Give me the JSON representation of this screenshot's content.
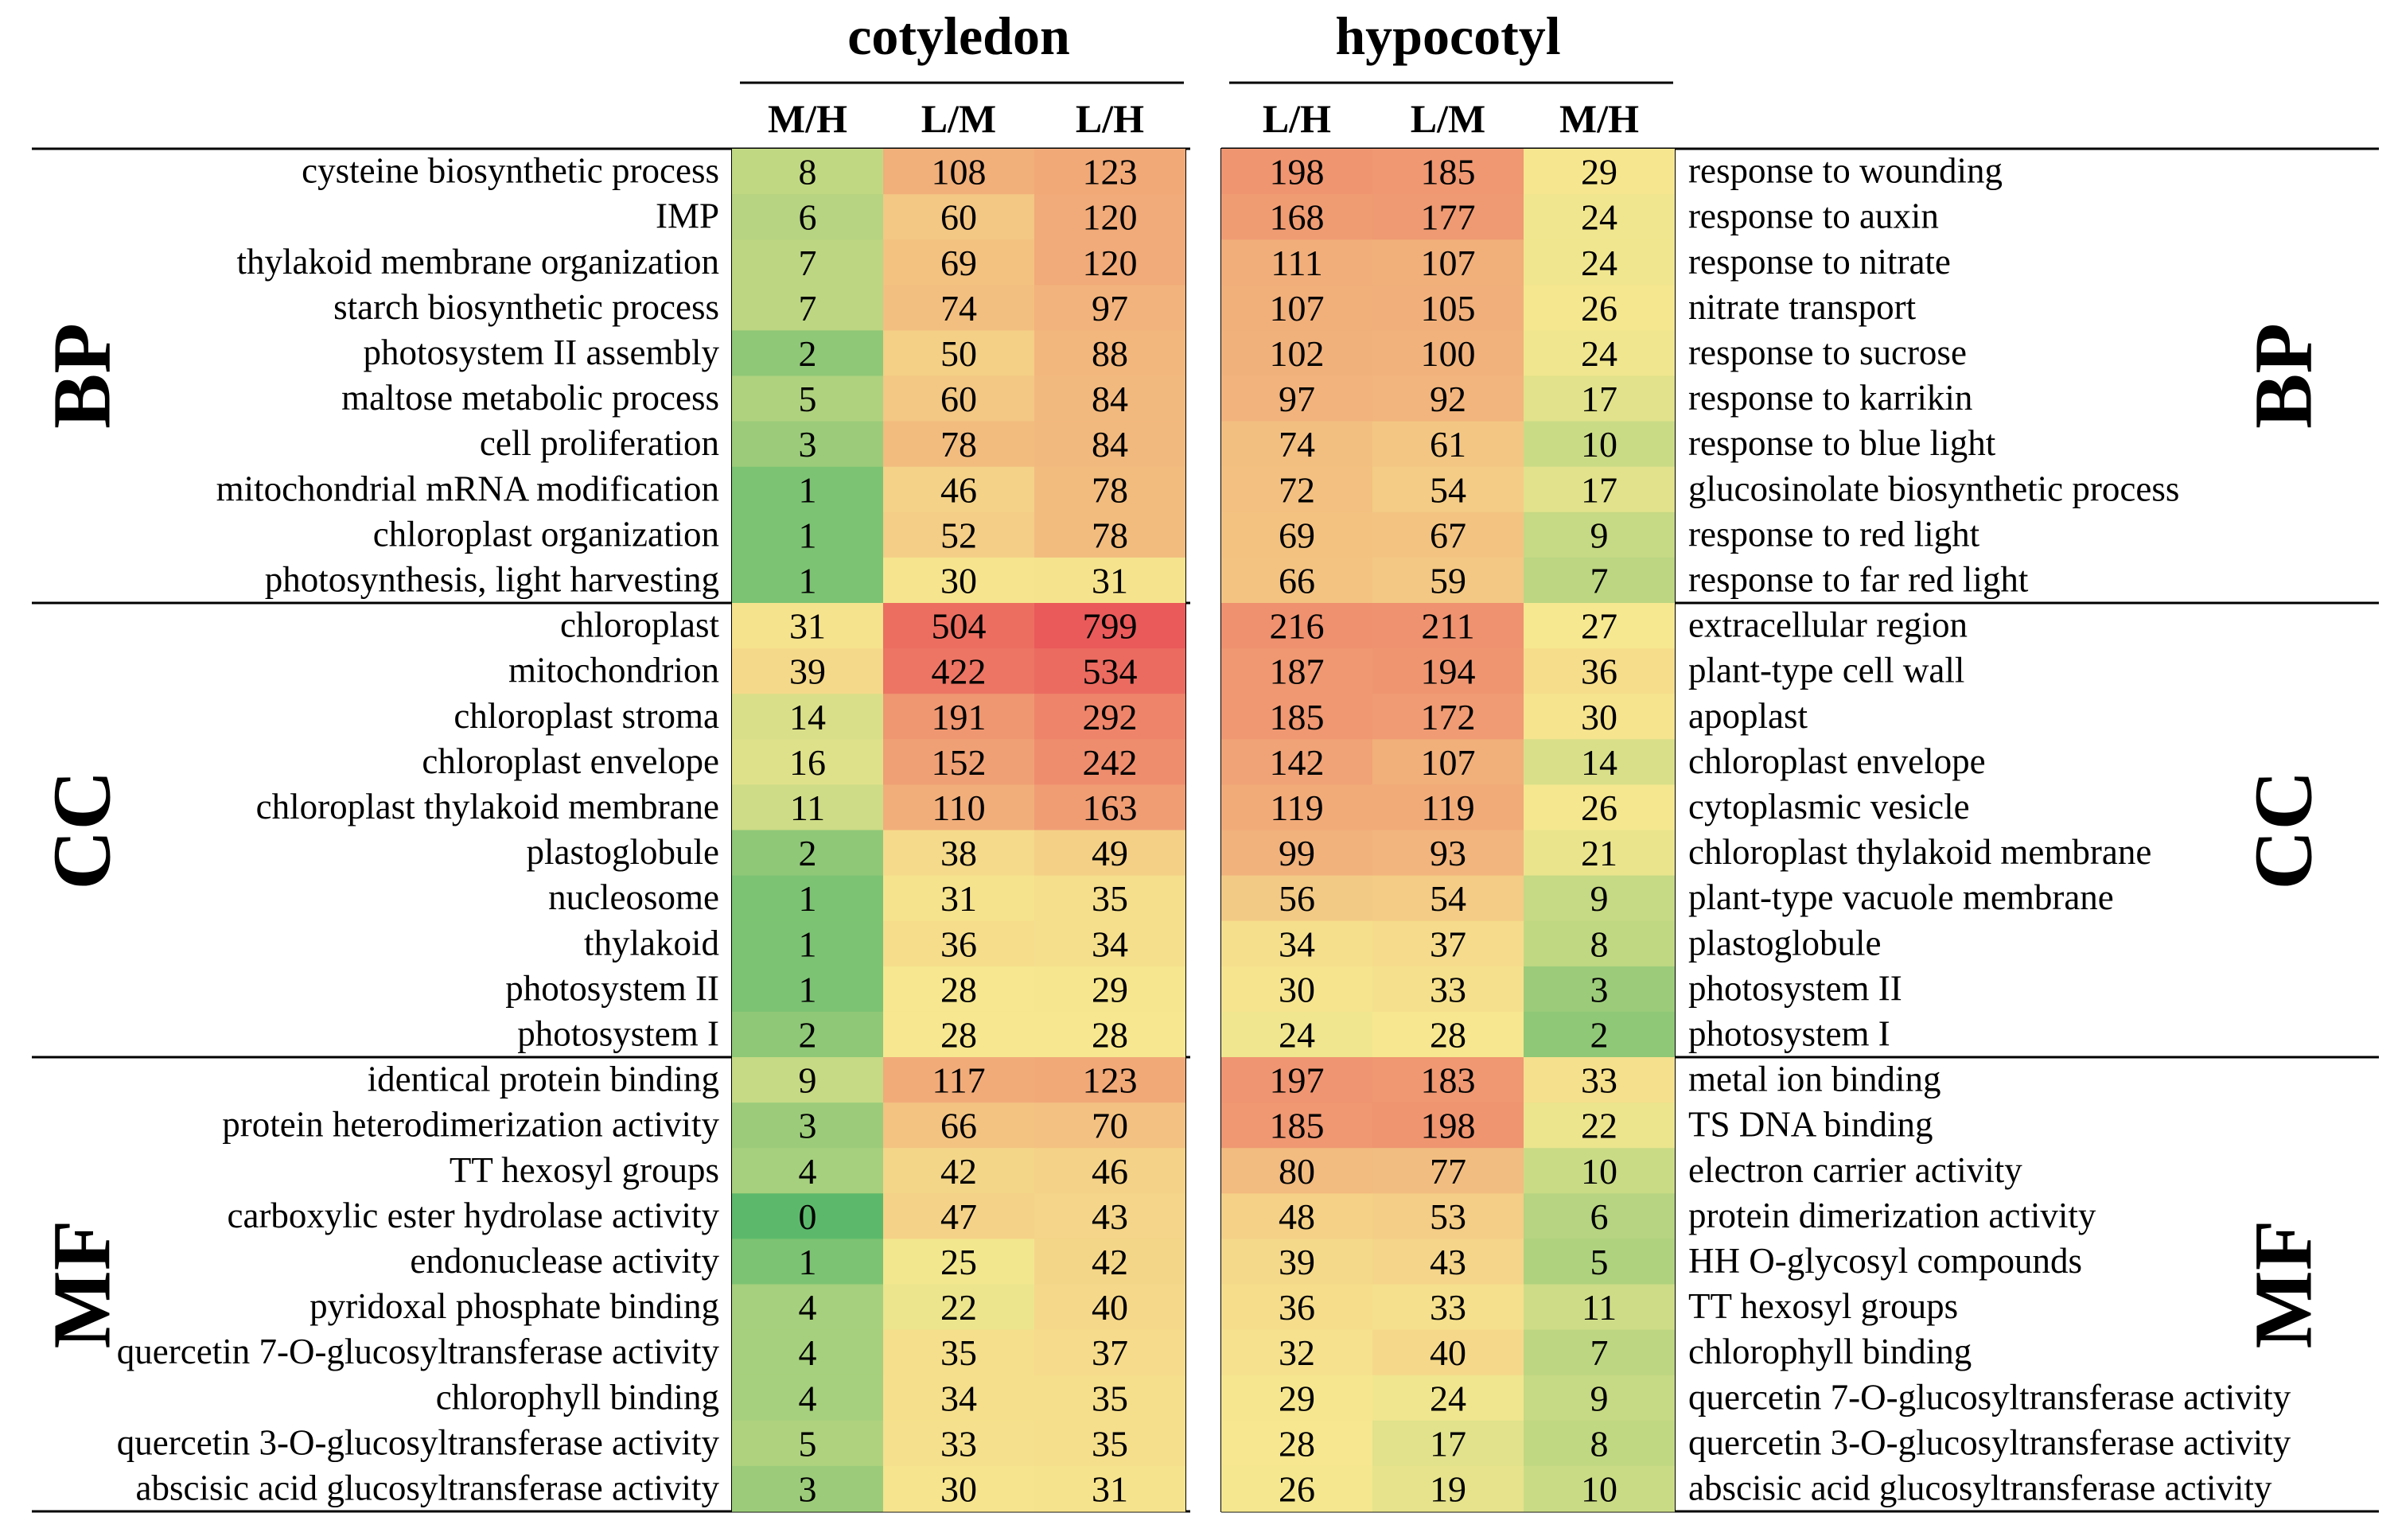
{
  "chart_data": {
    "type": "heatmap",
    "color_scale": {
      "low": "#5cb96b",
      "mid": "#f6e890",
      "high": "#ea5a5a",
      "max_value": 800
    },
    "panels": [
      {
        "title": "cotyledon",
        "columns": [
          "M/H",
          "L/M",
          "L/H"
        ]
      },
      {
        "title": "hypocotyl",
        "columns": [
          "L/H",
          "L/M",
          "M/H"
        ]
      }
    ],
    "categories": [
      {
        "name": "BP",
        "left_terms": [
          "cysteine biosynthetic process",
          "IMP",
          "thylakoid membrane organization",
          "starch biosynthetic process",
          "photosystem II assembly",
          "maltose metabolic process",
          "cell proliferation",
          "mitochondrial mRNA modification",
          "chloroplast organization",
          "photosynthesis, light harvesting"
        ],
        "left_values": [
          [
            8,
            108,
            123
          ],
          [
            6,
            60,
            120
          ],
          [
            7,
            69,
            120
          ],
          [
            7,
            74,
            97
          ],
          [
            2,
            50,
            88
          ],
          [
            5,
            60,
            84
          ],
          [
            3,
            78,
            84
          ],
          [
            1,
            46,
            78
          ],
          [
            1,
            52,
            78
          ],
          [
            1,
            30,
            31
          ]
        ],
        "right_terms": [
          "response to wounding",
          "response to auxin",
          "response to nitrate",
          "nitrate transport",
          "response to sucrose",
          "response to karrikin",
          "response to blue light",
          "glucosinolate biosynthetic process",
          "response to red light",
          "response to far red light"
        ],
        "right_values": [
          [
            198,
            185,
            29
          ],
          [
            168,
            177,
            24
          ],
          [
            111,
            107,
            24
          ],
          [
            107,
            105,
            26
          ],
          [
            102,
            100,
            24
          ],
          [
            97,
            92,
            17
          ],
          [
            74,
            61,
            10
          ],
          [
            72,
            54,
            17
          ],
          [
            69,
            67,
            9
          ],
          [
            66,
            59,
            7
          ]
        ]
      },
      {
        "name": "CC",
        "left_terms": [
          "chloroplast",
          "mitochondrion",
          "chloroplast stroma",
          "chloroplast envelope",
          "chloroplast thylakoid membrane",
          "plastoglobule",
          "nucleosome",
          "thylakoid",
          "photosystem II",
          "photosystem I"
        ],
        "left_values": [
          [
            31,
            504,
            799
          ],
          [
            39,
            422,
            534
          ],
          [
            14,
            191,
            292
          ],
          [
            16,
            152,
            242
          ],
          [
            11,
            110,
            163
          ],
          [
            2,
            38,
            49
          ],
          [
            1,
            31,
            35
          ],
          [
            1,
            36,
            34
          ],
          [
            1,
            28,
            29
          ],
          [
            2,
            28,
            28
          ]
        ],
        "right_terms": [
          "extracellular region",
          "plant-type cell wall",
          "apoplast",
          "chloroplast envelope",
          "cytoplasmic vesicle",
          "chloroplast thylakoid membrane",
          "plant-type vacuole membrane",
          "plastoglobule",
          "photosystem II",
          "photosystem I"
        ],
        "right_values": [
          [
            216,
            211,
            27
          ],
          [
            187,
            194,
            36
          ],
          [
            185,
            172,
            30
          ],
          [
            142,
            107,
            14
          ],
          [
            119,
            119,
            26
          ],
          [
            99,
            93,
            21
          ],
          [
            56,
            54,
            9
          ],
          [
            34,
            37,
            8
          ],
          [
            30,
            33,
            3
          ],
          [
            24,
            28,
            2
          ]
        ]
      },
      {
        "name": "MF",
        "left_terms": [
          "identical protein binding",
          "protein heterodimerization activity",
          "TT hexosyl groups",
          "carboxylic ester hydrolase activity",
          "endonuclease activity",
          "pyridoxal phosphate binding",
          "quercetin 7-O-glucosyltransferase activity",
          "chlorophyll binding",
          "quercetin 3-O-glucosyltransferase activity",
          "abscisic acid glucosyltransferase activity"
        ],
        "left_values": [
          [
            9,
            117,
            123
          ],
          [
            3,
            66,
            70
          ],
          [
            4,
            42,
            46
          ],
          [
            0,
            47,
            43
          ],
          [
            1,
            25,
            42
          ],
          [
            4,
            22,
            40
          ],
          [
            4,
            35,
            37
          ],
          [
            4,
            34,
            35
          ],
          [
            5,
            33,
            35
          ],
          [
            3,
            30,
            31
          ]
        ],
        "right_terms": [
          "metal ion binding",
          "TS DNA binding",
          "electron carrier activity",
          "protein dimerization activity",
          "HH O-glycosyl compounds",
          "TT hexosyl groups",
          "chlorophyll binding",
          "quercetin 7-O-glucosyltransferase activity",
          "quercetin 3-O-glucosyltransferase activity",
          "abscisic acid glucosyltransferase activity"
        ],
        "right_values": [
          [
            197,
            183,
            33
          ],
          [
            185,
            198,
            22
          ],
          [
            80,
            77,
            10
          ],
          [
            48,
            53,
            6
          ],
          [
            39,
            43,
            5
          ],
          [
            36,
            33,
            11
          ],
          [
            32,
            40,
            7
          ],
          [
            29,
            24,
            9
          ],
          [
            28,
            17,
            8
          ],
          [
            26,
            19,
            10
          ]
        ]
      }
    ]
  }
}
